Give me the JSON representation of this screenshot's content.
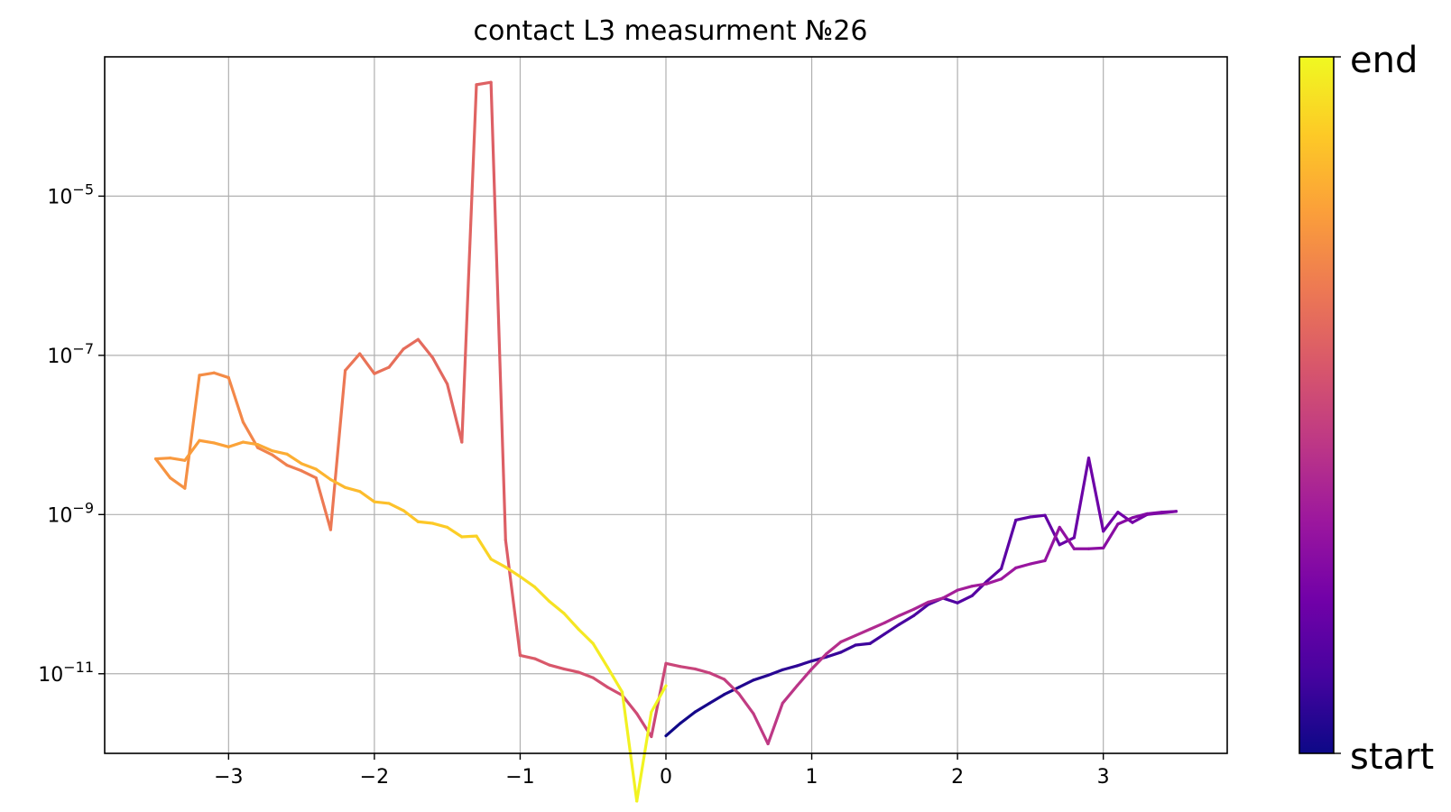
{
  "chart_data": {
    "type": "line",
    "title": "contact L3 measurment №26",
    "xlabel": "",
    "ylabel": "",
    "xlim": [
      -3.85,
      3.85
    ],
    "ylim_log10": [
      -12.0,
      -3.25
    ],
    "y_scale": "log",
    "grid": true,
    "x_ticks": [
      {
        "value": -3,
        "label": "−3"
      },
      {
        "value": -2,
        "label": "−2"
      },
      {
        "value": -1,
        "label": "−1"
      },
      {
        "value": 0,
        "label": "0"
      },
      {
        "value": 1,
        "label": "1"
      },
      {
        "value": 2,
        "label": "2"
      },
      {
        "value": 3,
        "label": "3"
      }
    ],
    "y_ticks": [
      {
        "value": 1e-05,
        "base": "10",
        "exp": "−5"
      },
      {
        "value": 1e-07,
        "base": "10",
        "exp": "−7"
      },
      {
        "value": 1e-09,
        "base": "10",
        "exp": "−9"
      },
      {
        "value": 1e-11,
        "base": "10",
        "exp": "−11"
      }
    ],
    "colormap": "plasma",
    "colormap_stops": [
      "#0d0887",
      "#46039f",
      "#7201a8",
      "#9c179e",
      "#bd3786",
      "#d8576b",
      "#ed7953",
      "#fb9f3a",
      "#fdca26",
      "#f0f921"
    ],
    "colorbar": {
      "bottom_label": "start",
      "top_label": "end"
    },
    "sweep_order": "0 → +3.5 → 0 → −3.5 → 0",
    "series": [
      {
        "x": [
          0.0,
          0.1,
          0.2,
          0.3,
          0.4,
          0.5,
          0.6,
          0.7,
          0.8,
          0.9,
          1.0,
          1.1,
          1.2,
          1.3,
          1.4,
          1.5,
          1.6,
          1.7,
          1.8,
          1.9,
          2.0,
          2.1,
          2.2,
          2.3,
          2.4,
          2.5,
          2.6,
          2.7,
          2.8,
          2.9,
          3.0,
          3.1,
          3.2,
          3.3,
          3.4,
          3.5,
          3.4,
          3.3,
          3.2,
          3.1,
          3.0,
          2.9,
          2.8,
          2.7,
          2.6,
          2.5,
          2.4,
          2.3,
          2.2,
          2.1,
          2.0,
          1.9,
          1.8,
          1.7,
          1.6,
          1.5,
          1.4,
          1.3,
          1.2,
          1.1,
          1.0,
          0.9,
          0.8,
          0.7,
          0.6,
          0.5,
          0.4,
          0.3,
          0.2,
          0.1,
          0.0,
          -0.1,
          -0.2,
          -0.3,
          -0.4,
          -0.5,
          -0.6,
          -0.7,
          -0.8,
          -0.9,
          -1.0,
          -1.1,
          -1.2,
          -1.3,
          -1.4,
          -1.5,
          -1.6,
          -1.7,
          -1.8,
          -1.9,
          -2.0,
          -2.1,
          -2.2,
          -2.3,
          -2.4,
          -2.5,
          -2.6,
          -2.7,
          -2.8,
          -2.9,
          -3.0,
          -3.1,
          -3.2,
          -3.3,
          -3.4,
          -3.5,
          -3.4,
          -3.3,
          -3.2,
          -3.1,
          -3.0,
          -2.9,
          -2.8,
          -2.7,
          -2.6,
          -2.5,
          -2.4,
          -2.3,
          -2.2,
          -2.1,
          -2.0,
          -1.9,
          -1.8,
          -1.7,
          -1.6,
          -1.5,
          -1.4,
          -1.3,
          -1.2,
          -1.1,
          -1.0,
          -0.9,
          -0.8,
          -0.7,
          -0.6,
          -0.5,
          -0.4,
          -0.3,
          -0.2,
          -0.1,
          0.0
        ],
        "log10_y": [
          -11.78,
          -11.62,
          -11.48,
          -11.37,
          -11.26,
          -11.17,
          -11.08,
          -11.02,
          -10.95,
          -10.9,
          -10.84,
          -10.79,
          -10.73,
          -10.64,
          -10.62,
          -10.5,
          -10.38,
          -10.27,
          -10.13,
          -10.05,
          -10.11,
          -10.02,
          -9.84,
          -9.68,
          -9.07,
          -9.03,
          -9.01,
          -9.38,
          -9.29,
          -8.29,
          -9.21,
          -8.97,
          -9.1,
          -9.0,
          -8.98,
          -8.96,
          -8.97,
          -8.99,
          -9.04,
          -9.12,
          -9.42,
          -9.43,
          -9.43,
          -9.16,
          -9.58,
          -9.62,
          -9.67,
          -9.81,
          -9.87,
          -9.9,
          -9.95,
          -10.05,
          -10.1,
          -10.19,
          -10.27,
          -10.36,
          -10.44,
          -10.52,
          -10.6,
          -10.75,
          -10.94,
          -11.15,
          -11.37,
          -11.88,
          -11.5,
          -11.25,
          -11.07,
          -10.99,
          -10.94,
          -10.91,
          -10.87,
          -11.79,
          -11.5,
          -11.27,
          -11.17,
          -11.05,
          -10.98,
          -10.94,
          -10.89,
          -10.81,
          -10.77,
          -9.32,
          -3.57,
          -3.6,
          -8.09,
          -7.36,
          -7.03,
          -6.8,
          -6.92,
          -7.15,
          -7.23,
          -6.98,
          -7.19,
          -9.19,
          -8.54,
          -8.45,
          -8.38,
          -8.25,
          -8.16,
          -7.84,
          -7.28,
          -7.22,
          -7.25,
          -8.67,
          -8.54,
          -8.3,
          -8.29,
          -8.32,
          -8.07,
          -8.1,
          -8.15,
          -8.09,
          -8.12,
          -8.2,
          -8.24,
          -8.36,
          -8.43,
          -8.56,
          -8.66,
          -8.71,
          -8.84,
          -8.86,
          -8.95,
          -9.09,
          -9.11,
          -9.16,
          -9.28,
          -9.27,
          -9.56,
          -9.66,
          -9.78,
          -9.91,
          -10.09,
          -10.24,
          -10.44,
          -10.62,
          -10.92,
          -11.23,
          -12.6,
          -11.48,
          -11.15,
          -10.99
        ]
      }
    ]
  }
}
